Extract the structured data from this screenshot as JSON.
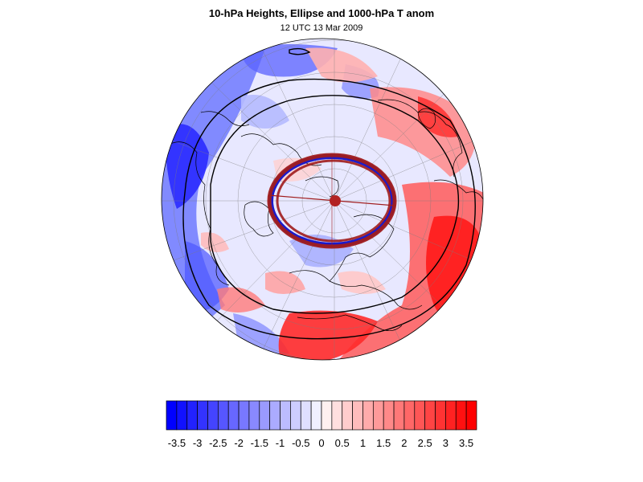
{
  "title": "10-hPa Heights, Ellipse and 1000-hPa T anom",
  "subtitle": "12 UTC 13 Mar 2009",
  "colors": {
    "cold": "#0000ff",
    "warm": "#ff0000",
    "ellipse_outer": "#a01c1c",
    "ellipse_inner": "#1010c8",
    "center_marker": "#b22222",
    "contour": "#000000"
  },
  "colorbar": {
    "min": -3.75,
    "max": 3.75,
    "step": 0.25,
    "ticks": [
      "-3.5",
      "-3",
      "-2.5",
      "-2",
      "-1.5",
      "-1",
      "-0.5",
      "0",
      "0.5",
      "1",
      "1.5",
      "2",
      "2.5",
      "3",
      "3.5"
    ]
  }
}
